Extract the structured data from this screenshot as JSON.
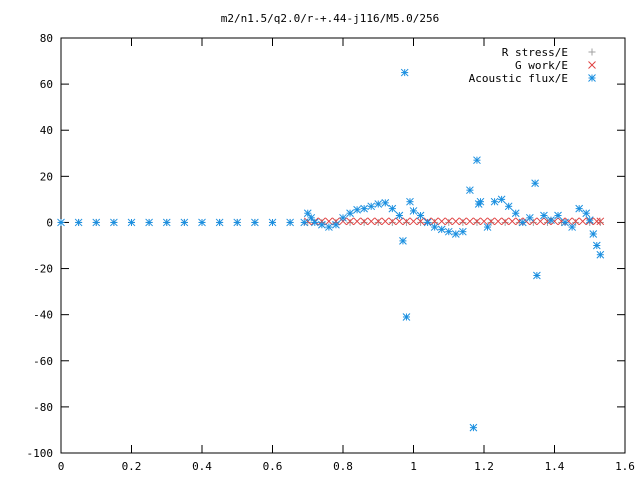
{
  "chart_data": {
    "type": "scatter",
    "title": "m2/n1.5/q2.0/r-+.44-j116/M5.0/256",
    "xlabel": "",
    "ylabel": "",
    "xlim": [
      0,
      1.6
    ],
    "ylim": [
      -100,
      80
    ],
    "x_ticks": [
      0,
      0.2,
      0.4,
      0.6,
      0.8,
      1,
      1.2,
      1.4,
      1.6
    ],
    "x_tick_labels": [
      "0",
      "0.2",
      "0.4",
      "0.6",
      "0.8",
      "1",
      "1.2",
      "1.4",
      "1.6"
    ],
    "y_ticks": [
      80,
      60,
      40,
      20,
      0,
      -20,
      -40,
      -60,
      -80,
      -100
    ],
    "y_tick_labels": [
      "80",
      "60",
      "40",
      "20",
      "0",
      "-20",
      "-40",
      "-60",
      "-80",
      "-100"
    ],
    "grid": false,
    "legend_position": "top-right",
    "series": [
      {
        "name": "R stress/E",
        "marker": "plus",
        "color": "#a0a0a0",
        "x": [
          0.0,
          0.05,
          0.1,
          0.15,
          0.2,
          0.25,
          0.3,
          0.35,
          0.4,
          0.45,
          0.5,
          0.55,
          0.6,
          0.65,
          0.7,
          0.74,
          0.78,
          0.82,
          0.86,
          0.9,
          0.94,
          0.98,
          1.02,
          1.06,
          1.1,
          1.14,
          1.18,
          1.22,
          1.26,
          1.3,
          1.34,
          1.38,
          1.42,
          1.46,
          1.5,
          1.53
        ],
        "y": [
          0,
          0,
          0,
          0,
          0,
          0,
          0,
          0,
          0,
          0,
          0,
          0,
          0,
          0,
          0,
          0,
          0,
          0,
          0,
          0,
          0,
          0,
          0,
          0,
          0,
          0,
          0,
          0,
          0,
          0,
          0,
          0,
          0,
          0,
          0,
          0
        ]
      },
      {
        "name": "G work/E",
        "marker": "cross",
        "color": "#e04040",
        "x": [
          0.7,
          0.72,
          0.74,
          0.76,
          0.78,
          0.8,
          0.82,
          0.84,
          0.86,
          0.88,
          0.9,
          0.92,
          0.94,
          0.96,
          0.98,
          1.0,
          1.02,
          1.04,
          1.06,
          1.08,
          1.1,
          1.12,
          1.14,
          1.16,
          1.18,
          1.2,
          1.22,
          1.24,
          1.26,
          1.28,
          1.3,
          1.32,
          1.34,
          1.36,
          1.38,
          1.4,
          1.42,
          1.44,
          1.46,
          1.48,
          1.5,
          1.52,
          1.53
        ],
        "y": [
          0.5,
          0.5,
          0.5,
          0.5,
          0.5,
          0.5,
          0.5,
          0.5,
          0.5,
          0.5,
          0.5,
          0.5,
          0.5,
          0.5,
          0.5,
          0.5,
          0.5,
          0.5,
          0.5,
          0.5,
          0.5,
          0.5,
          0.5,
          0.5,
          0.5,
          0.5,
          0.5,
          0.5,
          0.5,
          0.5,
          0.5,
          0.5,
          0.5,
          0.5,
          0.5,
          0.5,
          0.5,
          0.5,
          0.5,
          0.5,
          0.5,
          0.5,
          0.5
        ]
      },
      {
        "name": "Acoustic flux/E",
        "marker": "star",
        "color": "#1a8fe0",
        "x": [
          0.0,
          0.05,
          0.1,
          0.15,
          0.2,
          0.25,
          0.3,
          0.35,
          0.4,
          0.45,
          0.5,
          0.55,
          0.6,
          0.65,
          0.69,
          0.7,
          0.71,
          0.72,
          0.74,
          0.76,
          0.78,
          0.8,
          0.82,
          0.84,
          0.86,
          0.88,
          0.9,
          0.92,
          0.94,
          0.96,
          0.97,
          0.975,
          0.98,
          0.99,
          1.0,
          1.02,
          1.04,
          1.06,
          1.08,
          1.1,
          1.12,
          1.14,
          1.16,
          1.17,
          1.18,
          1.185,
          1.19,
          1.21,
          1.23,
          1.25,
          1.27,
          1.29,
          1.31,
          1.33,
          1.345,
          1.35,
          1.37,
          1.39,
          1.41,
          1.43,
          1.45,
          1.47,
          1.49,
          1.5,
          1.51,
          1.52,
          1.53
        ],
        "y": [
          0,
          0,
          0,
          0,
          0,
          0,
          0,
          0,
          0,
          0,
          0,
          0,
          0,
          0,
          0,
          4,
          2,
          0,
          -1,
          -2,
          -1,
          2,
          4,
          5.5,
          6,
          7,
          8,
          8.5,
          6,
          3,
          -8,
          65,
          -41,
          9,
          5,
          3,
          0,
          -2,
          -3,
          -4,
          -5,
          -4,
          14,
          -89,
          27,
          8,
          9,
          -2,
          9,
          10,
          7,
          4,
          0,
          2,
          17,
          -23,
          3,
          1,
          3,
          0,
          -2,
          6,
          4,
          1,
          -5,
          -10,
          -14
        ]
      }
    ]
  }
}
